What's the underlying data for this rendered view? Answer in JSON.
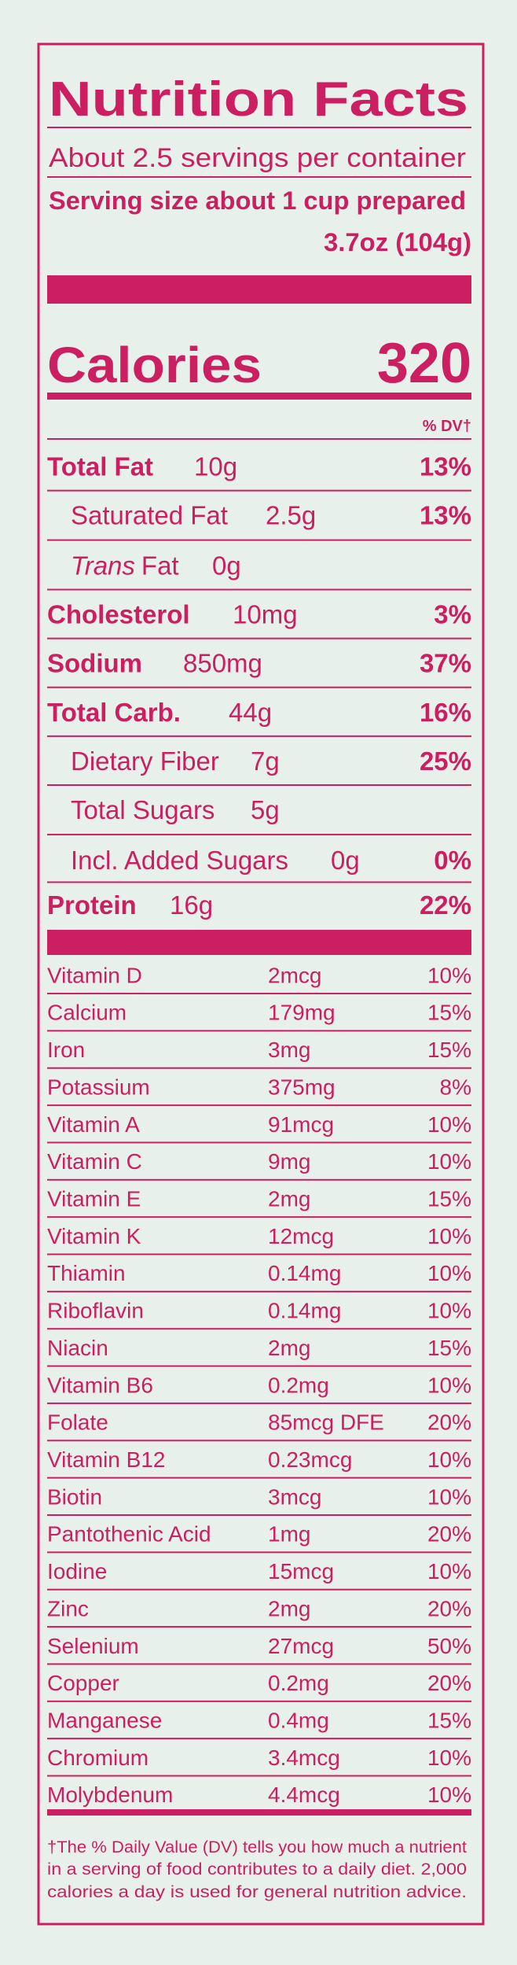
{
  "title": "Nutrition Facts",
  "servings": "About 2.5 servings per container",
  "serving_size_label": "Serving size about 1 cup prepared",
  "serving_size_amount": "3.7oz (104g)",
  "calories": {
    "label": "Calories",
    "value": 320
  },
  "dv_header": "% DV†",
  "nutrients": [
    {
      "name": "Total Fat",
      "amount": "10g",
      "dv": "13%"
    },
    {
      "name": "Saturated Fat",
      "amount": "2.5g",
      "dv": "13%"
    },
    {
      "name_italic": "Trans",
      "name": "Fat",
      "amount": "0g"
    },
    {
      "name": "Cholesterol",
      "amount": "10mg",
      "dv": "3%"
    },
    {
      "name": "Sodium",
      "amount": "850mg",
      "dv": "37%"
    },
    {
      "name": "Total Carb.",
      "amount": "44g",
      "dv": "16%"
    },
    {
      "name": "Dietary Fiber",
      "amount": "7g",
      "dv": "25%"
    },
    {
      "name": "Total Sugars",
      "amount": "5g"
    },
    {
      "name": "Incl. Added Sugars",
      "amount": "0g",
      "dv": "0%"
    },
    {
      "name": "Protein",
      "amount": "16g",
      "dv": "22%"
    }
  ],
  "vitamins": [
    {
      "name": "Vitamin D",
      "amount": "2mcg",
      "dv": "10%"
    },
    {
      "name": "Calcium",
      "amount": "179mg",
      "dv": "15%"
    },
    {
      "name": "Iron",
      "amount": "3mg",
      "dv": "15%"
    },
    {
      "name": "Potassium",
      "amount": "375mg",
      "dv": "8%"
    },
    {
      "name": "Vitamin A",
      "amount": "91mcg",
      "dv": "10%"
    },
    {
      "name": "Vitamin C",
      "amount": "9mg",
      "dv": "10%"
    },
    {
      "name": "Vitamin E",
      "amount": "2mg",
      "dv": "15%"
    },
    {
      "name": "Vitamin K",
      "amount": "12mcg",
      "dv": "10%"
    },
    {
      "name": "Thiamin",
      "amount": "0.14mg",
      "dv": "10%"
    },
    {
      "name": "Riboflavin",
      "amount": "0.14mg",
      "dv": "10%"
    },
    {
      "name": "Niacin",
      "amount": "2mg",
      "dv": "15%"
    },
    {
      "name": "Vitamin B6",
      "amount": "0.2mg",
      "dv": "10%"
    },
    {
      "name": "Folate",
      "amount": "85mcg DFE",
      "dv": "20%"
    },
    {
      "name": "Vitamin B12",
      "amount": "0.23mcg",
      "dv": "10%"
    },
    {
      "name": "Biotin",
      "amount": "3mcg",
      "dv": "10%"
    },
    {
      "name": "Pantothenic Acid",
      "amount": "1mg",
      "dv": "20%"
    },
    {
      "name": "Iodine",
      "amount": "15mcg",
      "dv": "10%"
    },
    {
      "name": "Zinc",
      "amount": "2mg",
      "dv": "20%"
    },
    {
      "name": "Selenium",
      "amount": "27mcg",
      "dv": "50%"
    },
    {
      "name": "Copper",
      "amount": "0.2mg",
      "dv": "20%"
    },
    {
      "name": "Manganese",
      "amount": "0.4mg",
      "dv": "15%"
    },
    {
      "name": "Chromium",
      "amount": "3.4mcg",
      "dv": "10%"
    },
    {
      "name": "Molybdenum",
      "amount": "4.4mcg",
      "dv": "10%"
    }
  ],
  "footnote": [
    "†The % Daily Value (DV) tells you how much a nutrient",
    "in a serving of  food contributes to a daily diet. 2,000",
    "calories a day is used for general nutrition advice."
  ]
}
